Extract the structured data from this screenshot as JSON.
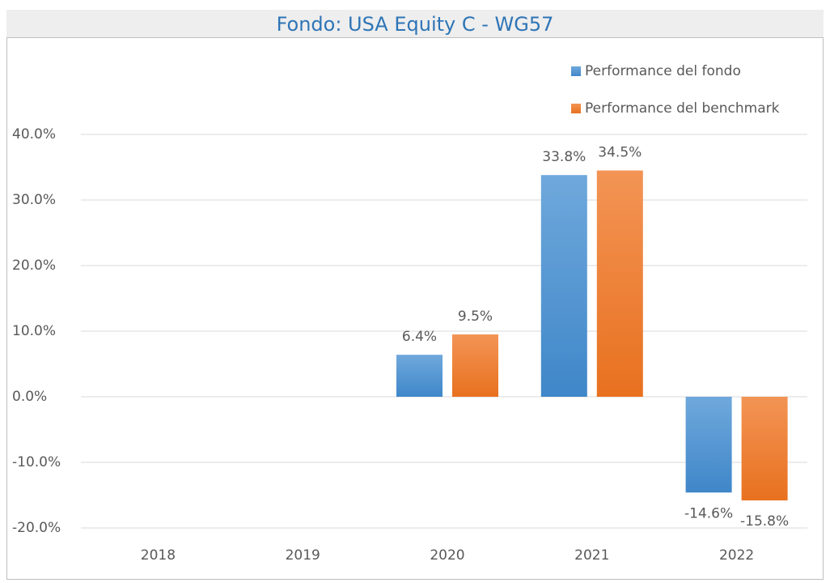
{
  "chart_data": {
    "type": "bar",
    "title": "Fondo: USA Equity C - WG57",
    "categories": [
      "2018",
      "2019",
      "2020",
      "2021",
      "2022"
    ],
    "series": [
      {
        "name": "Performance del fondo",
        "color": "#5b9bd5",
        "values": [
          null,
          null,
          6.4,
          33.8,
          -14.6
        ],
        "value_labels": [
          null,
          null,
          "6.4%",
          "33.8%",
          "-14.6%"
        ]
      },
      {
        "name": "Performance del benchmark",
        "color": "#ed7d31",
        "values": [
          null,
          null,
          9.5,
          34.5,
          -15.8
        ],
        "value_labels": [
          null,
          null,
          "9.5%",
          "34.5%",
          "-15.8%"
        ]
      }
    ],
    "ylim": [
      -20,
      40
    ],
    "yticks": [
      {
        "value": -20,
        "label": "-20.0%"
      },
      {
        "value": -10,
        "label": "-10.0%"
      },
      {
        "value": 0,
        "label": "0.0%"
      },
      {
        "value": 10,
        "label": "10.0%"
      },
      {
        "value": 20,
        "label": "20.0%"
      },
      {
        "value": 30,
        "label": "30.0%"
      },
      {
        "value": 40,
        "label": "40.0%"
      }
    ],
    "grid": true,
    "legend": "top-right"
  }
}
